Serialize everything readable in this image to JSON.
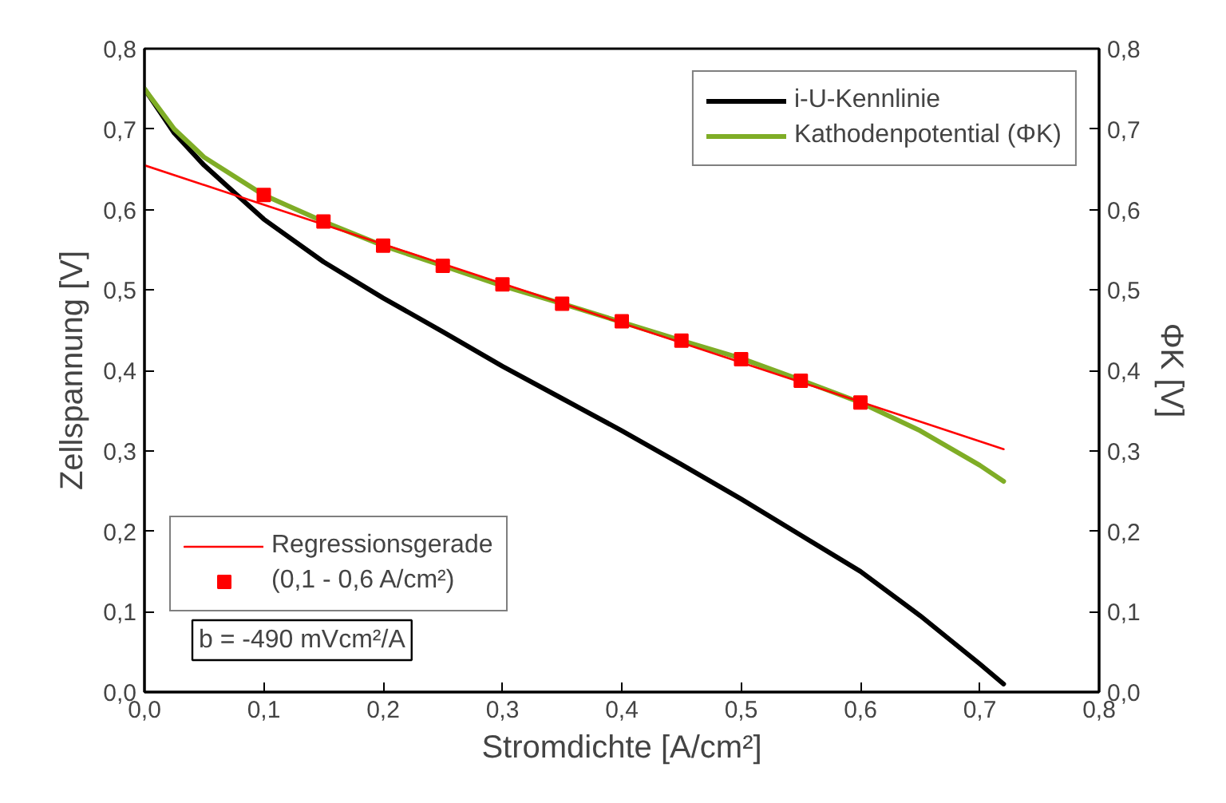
{
  "chart_data": {
    "type": "line",
    "xlabel": "Stromdichte [A/cm²]",
    "ylabel": "Zellspannung [V]",
    "y2label": "ΦK [V]",
    "xlim": [
      0,
      0.8
    ],
    "ylim": [
      0,
      0.8
    ],
    "y2lim": [
      0,
      0.8
    ],
    "xticks": [
      {
        "value": 0,
        "label": "0,0"
      },
      {
        "value": 0.1,
        "label": "0,1"
      },
      {
        "value": 0.2,
        "label": "0,2"
      },
      {
        "value": 0.3,
        "label": "0,3"
      },
      {
        "value": 0.4,
        "label": "0,4"
      },
      {
        "value": 0.5,
        "label": "0,5"
      },
      {
        "value": 0.6,
        "label": "0,6"
      },
      {
        "value": 0.7,
        "label": "0,7"
      },
      {
        "value": 0.8,
        "label": "0,8"
      }
    ],
    "yticks": [
      {
        "value": 0,
        "label": "0,0"
      },
      {
        "value": 0.1,
        "label": "0,1"
      },
      {
        "value": 0.2,
        "label": "0,2"
      },
      {
        "value": 0.3,
        "label": "0,3"
      },
      {
        "value": 0.4,
        "label": "0,4"
      },
      {
        "value": 0.5,
        "label": "0,5"
      },
      {
        "value": 0.6,
        "label": "0,6"
      },
      {
        "value": 0.7,
        "label": "0,7"
      },
      {
        "value": 0.8,
        "label": "0,8"
      }
    ],
    "y2ticks": [
      {
        "value": 0,
        "label": "0,0"
      },
      {
        "value": 0.1,
        "label": "0,1"
      },
      {
        "value": 0.2,
        "label": "0,2"
      },
      {
        "value": 0.3,
        "label": "0,3"
      },
      {
        "value": 0.4,
        "label": "0,4"
      },
      {
        "value": 0.5,
        "label": "0,5"
      },
      {
        "value": 0.6,
        "label": "0,6"
      },
      {
        "value": 0.7,
        "label": "0,7"
      },
      {
        "value": 0.8,
        "label": "0,8"
      }
    ],
    "grid": false,
    "legend": "top right",
    "series": [
      {
        "name": "i-U-Kennlinie",
        "color": "#000000",
        "x": [
          0,
          0.025,
          0.05,
          0.1,
          0.15,
          0.2,
          0.25,
          0.3,
          0.35,
          0.4,
          0.45,
          0.5,
          0.55,
          0.6,
          0.65,
          0.7,
          0.72
        ],
        "values": [
          0.75,
          0.695,
          0.655,
          0.588,
          0.535,
          0.49,
          0.448,
          0.405,
          0.365,
          0.325,
          0.283,
          0.24,
          0.195,
          0.15,
          0.095,
          0.035,
          0.01
        ]
      },
      {
        "name": "Kathodenpotential (ΦK)",
        "color": "#7fad26",
        "x": [
          0,
          0.025,
          0.05,
          0.1,
          0.15,
          0.2,
          0.25,
          0.3,
          0.35,
          0.4,
          0.45,
          0.5,
          0.55,
          0.6,
          0.65,
          0.7,
          0.72
        ],
        "values": [
          0.75,
          0.7,
          0.665,
          0.618,
          0.585,
          0.555,
          0.53,
          0.505,
          0.483,
          0.46,
          0.437,
          0.415,
          0.388,
          0.36,
          0.325,
          0.282,
          0.262
        ]
      },
      {
        "name": "Regressionsgerade",
        "type": "line",
        "color": "#ff0000",
        "x": [
          0,
          0.72
        ],
        "values": [
          0.655,
          0.302
        ]
      },
      {
        "name": "(0,1 - 0,6 A/cm²)",
        "type": "scatter",
        "marker": "square",
        "color": "#ff0000",
        "x": [
          0.1,
          0.15,
          0.2,
          0.25,
          0.3,
          0.35,
          0.4,
          0.45,
          0.5,
          0.55,
          0.6
        ],
        "values": [
          0.618,
          0.585,
          0.555,
          0.53,
          0.507,
          0.483,
          0.461,
          0.437,
          0.414,
          0.387,
          0.36
        ]
      }
    ],
    "annotations": [
      "b = -490 mVcm²/A"
    ]
  }
}
